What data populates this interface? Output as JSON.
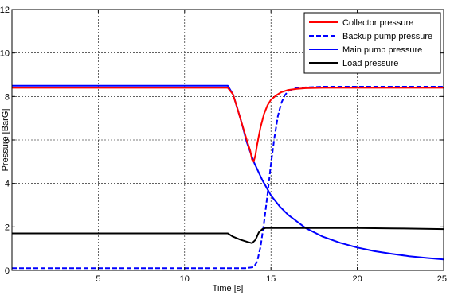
{
  "chart_data": {
    "type": "line",
    "title": "",
    "xlabel": "Time [s]",
    "ylabel": "Pressure [BarG]",
    "xlim": [
      0,
      25
    ],
    "ylim": [
      0,
      12
    ],
    "xticks": [
      5,
      10,
      15,
      20,
      25
    ],
    "yticks": [
      0,
      2,
      4,
      6,
      8,
      10,
      12
    ],
    "xtick_labels": [
      "5",
      "10",
      "15",
      "20",
      "25"
    ],
    "ytick_labels": [
      "0",
      "2",
      "4",
      "6",
      "8",
      "10",
      "12"
    ],
    "grid": true,
    "legend_position": "top-right",
    "series": [
      {
        "name": "Collector pressure",
        "color": "#ff0000",
        "dash": "solid",
        "x": [
          0,
          12.5,
          12.8,
          13.0,
          13.3,
          13.6,
          13.8,
          13.9,
          14.0,
          14.1,
          14.2,
          14.4,
          14.6,
          14.8,
          15.0,
          15.3,
          15.6,
          16.0,
          16.5,
          17.0,
          18.0,
          20.0,
          22.0,
          25.0
        ],
        "y": [
          8.4,
          8.4,
          8.1,
          7.6,
          6.8,
          6.0,
          5.5,
          5.1,
          5.0,
          5.3,
          5.8,
          6.6,
          7.2,
          7.6,
          7.85,
          8.05,
          8.2,
          8.3,
          8.35,
          8.38,
          8.4,
          8.4,
          8.4,
          8.4
        ]
      },
      {
        "name": "Backup pump pressure",
        "color": "#0000ff",
        "dash": "dashed",
        "x": [
          0,
          13.5,
          14.0,
          14.2,
          14.4,
          14.6,
          14.8,
          15.0,
          15.2,
          15.4,
          15.6,
          15.8,
          16.0,
          16.4,
          17.0,
          18.0,
          20.0,
          25.0
        ],
        "y": [
          0.1,
          0.1,
          0.15,
          0.4,
          1.1,
          2.2,
          3.5,
          4.9,
          6.1,
          7.1,
          7.7,
          8.05,
          8.25,
          8.38,
          8.42,
          8.45,
          8.45,
          8.45
        ]
      },
      {
        "name": "Main pump pressure",
        "color": "#0000ff",
        "dash": "solid",
        "x": [
          0,
          12.5,
          12.8,
          13.0,
          13.3,
          13.6,
          14.0,
          14.5,
          15.0,
          15.5,
          16.0,
          17.0,
          18.0,
          19.0,
          20.0,
          21.0,
          22.0,
          23.0,
          24.0,
          25.0
        ],
        "y": [
          8.5,
          8.5,
          8.1,
          7.6,
          6.8,
          5.9,
          5.0,
          4.15,
          3.45,
          2.95,
          2.55,
          1.95,
          1.55,
          1.27,
          1.05,
          0.88,
          0.76,
          0.65,
          0.57,
          0.5
        ]
      },
      {
        "name": "Load pressure",
        "color": "#000000",
        "dash": "solid",
        "x": [
          0,
          12.5,
          12.8,
          13.2,
          13.6,
          13.9,
          14.1,
          14.3,
          14.5,
          14.7,
          15.0,
          15.5,
          17.0,
          20.0,
          22.0,
          25.0
        ],
        "y": [
          1.7,
          1.7,
          1.55,
          1.42,
          1.32,
          1.25,
          1.4,
          1.75,
          1.9,
          1.95,
          1.95,
          1.95,
          1.95,
          1.95,
          1.93,
          1.9
        ]
      }
    ]
  }
}
